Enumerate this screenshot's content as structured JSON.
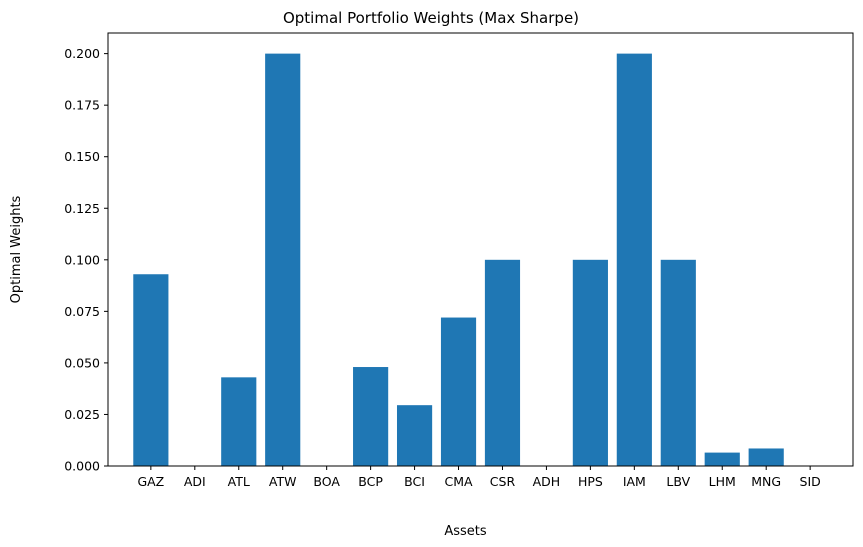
{
  "chart_data": {
    "type": "bar",
    "title": "Optimal Portfolio Weights (Max Sharpe)",
    "xlabel": "Assets",
    "ylabel": "Optimal Weights",
    "categories": [
      "GAZ",
      "ADI",
      "ATL",
      "ATW",
      "BOA",
      "BCP",
      "BCI",
      "CMA",
      "CSR",
      "ADH",
      "HPS",
      "IAM",
      "LBV",
      "LHM",
      "MNG",
      "SID"
    ],
    "values": [
      0.093,
      0.0,
      0.043,
      0.2,
      0.0,
      0.048,
      0.0295,
      0.072,
      0.1,
      0.0,
      0.1,
      0.2,
      0.1,
      0.0065,
      0.0085,
      0.0
    ],
    "ylim": [
      0,
      0.21
    ],
    "yticks": [
      "0.000",
      "0.025",
      "0.050",
      "0.075",
      "0.100",
      "0.125",
      "0.150",
      "0.175",
      "0.200"
    ],
    "bar_color": "#1f77b4",
    "grid": false,
    "legend": false
  }
}
